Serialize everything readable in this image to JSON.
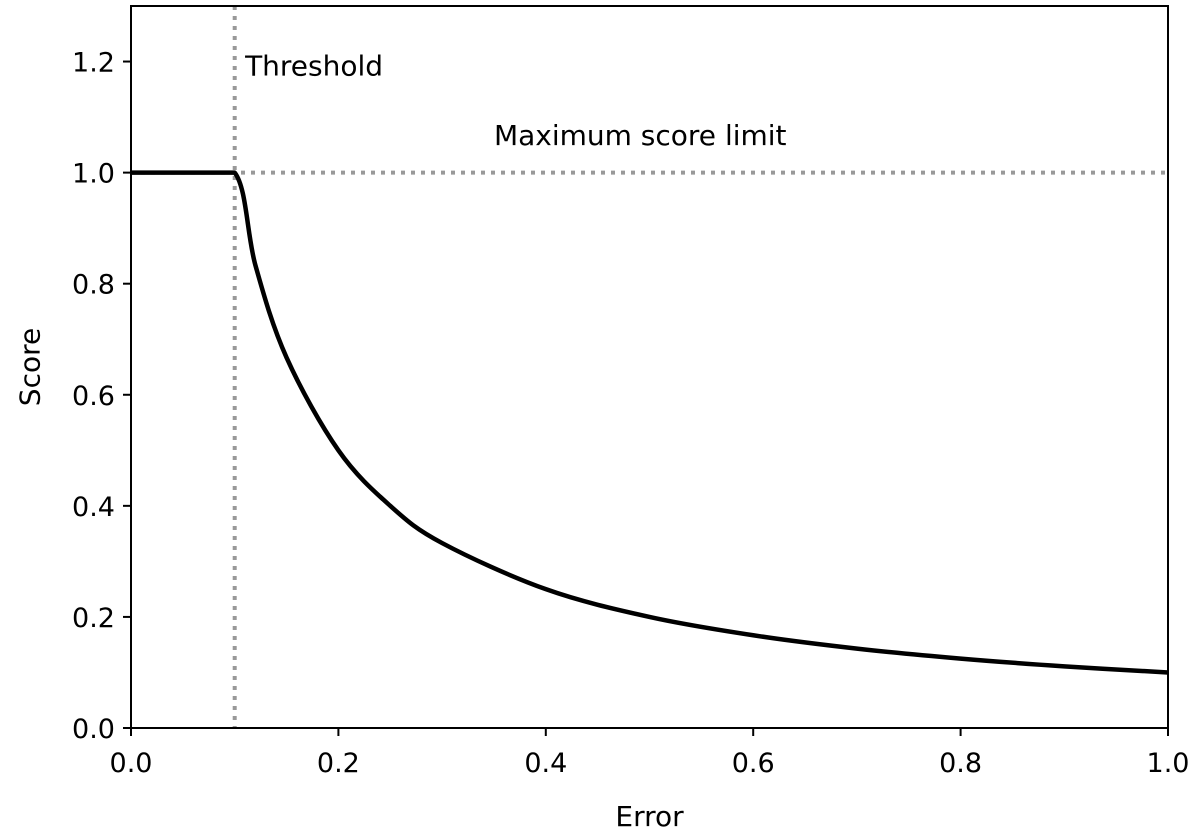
{
  "chart_data": {
    "type": "line",
    "xlabel": "Error",
    "ylabel": "Score",
    "xlim": [
      0.0,
      1.0
    ],
    "ylim": [
      0.0,
      1.3
    ],
    "x_ticks": [
      "0.0",
      "0.2",
      "0.4",
      "0.6",
      "0.8",
      "1.0"
    ],
    "y_ticks": [
      "0.0",
      "0.2",
      "0.4",
      "0.6",
      "0.8",
      "1.0",
      "1.2"
    ],
    "grid": false,
    "series": [
      {
        "color": "#000000",
        "style": "solid",
        "x": [
          0.0,
          0.05,
          0.1,
          0.12,
          0.15,
          0.2,
          0.25,
          0.3,
          0.4,
          0.5,
          0.6,
          0.7,
          0.8,
          0.9,
          1.0
        ],
        "y": [
          1.0,
          1.0,
          1.0,
          0.833,
          0.667,
          0.5,
          0.4,
          0.333,
          0.25,
          0.2,
          0.167,
          0.143,
          0.125,
          0.111,
          0.1
        ]
      }
    ],
    "reference_lines": [
      {
        "orientation": "vertical",
        "x": 0.1,
        "color": "#999999",
        "style": "dotted",
        "label": "Threshold"
      },
      {
        "orientation": "horizontal",
        "y": 1.0,
        "color": "#999999",
        "style": "dotted",
        "label": "Maximum score limit"
      }
    ],
    "annotations": [
      {
        "text": "Threshold",
        "x": 0.11,
        "y": 1.175
      },
      {
        "text": "Maximum score limit",
        "x": 0.35,
        "y": 1.05
      }
    ]
  }
}
